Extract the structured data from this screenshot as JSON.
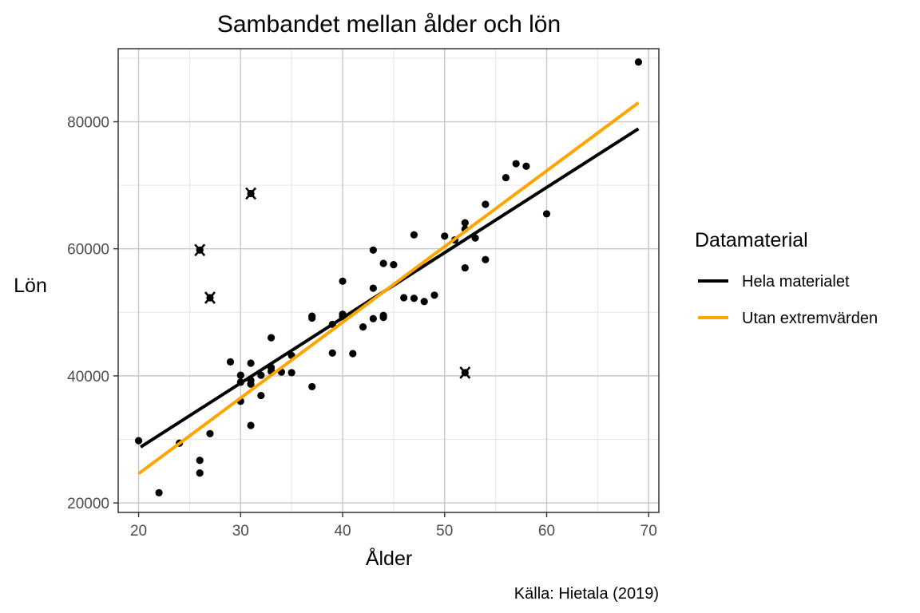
{
  "chart_data": {
    "type": "scatter",
    "title": "Sambandet mellan ålder och lön",
    "xlabel": "Ålder",
    "ylabel": "Lön",
    "caption": "Källa: Hietala (2019)",
    "xlim": [
      18,
      71
    ],
    "ylim": [
      18500,
      91500
    ],
    "x_ticks": [
      20,
      30,
      40,
      50,
      60,
      70
    ],
    "y_ticks": [
      20000,
      40000,
      60000,
      80000
    ],
    "grid": true,
    "legend_title": "Datamaterial",
    "legend_position": "right",
    "points": [
      {
        "x": 20,
        "y": 29800
      },
      {
        "x": 22,
        "y": 21600
      },
      {
        "x": 24,
        "y": 29400
      },
      {
        "x": 26,
        "y": 26700
      },
      {
        "x": 26,
        "y": 24700
      },
      {
        "x": 27,
        "y": 30900
      },
      {
        "x": 29,
        "y": 42200
      },
      {
        "x": 30,
        "y": 40100
      },
      {
        "x": 30,
        "y": 39000
      },
      {
        "x": 30,
        "y": 36000
      },
      {
        "x": 31,
        "y": 42000
      },
      {
        "x": 31,
        "y": 39300
      },
      {
        "x": 31,
        "y": 38700
      },
      {
        "x": 31,
        "y": 32200
      },
      {
        "x": 32,
        "y": 40100
      },
      {
        "x": 32,
        "y": 36900
      },
      {
        "x": 33,
        "y": 46000
      },
      {
        "x": 33,
        "y": 41300
      },
      {
        "x": 33,
        "y": 40700
      },
      {
        "x": 34,
        "y": 40600
      },
      {
        "x": 35,
        "y": 43200
      },
      {
        "x": 35,
        "y": 40500
      },
      {
        "x": 37,
        "y": 49400
      },
      {
        "x": 37,
        "y": 49100
      },
      {
        "x": 37,
        "y": 38300
      },
      {
        "x": 39,
        "y": 48100
      },
      {
        "x": 39,
        "y": 43600
      },
      {
        "x": 40,
        "y": 54900
      },
      {
        "x": 40,
        "y": 49700
      },
      {
        "x": 40,
        "y": 49300
      },
      {
        "x": 41,
        "y": 43500
      },
      {
        "x": 42,
        "y": 47700
      },
      {
        "x": 43,
        "y": 59800
      },
      {
        "x": 43,
        "y": 53800
      },
      {
        "x": 43,
        "y": 49000
      },
      {
        "x": 44,
        "y": 57700
      },
      {
        "x": 44,
        "y": 49500
      },
      {
        "x": 44,
        "y": 49200
      },
      {
        "x": 45,
        "y": 57500
      },
      {
        "x": 46,
        "y": 52300
      },
      {
        "x": 47,
        "y": 62200
      },
      {
        "x": 47,
        "y": 52200
      },
      {
        "x": 48,
        "y": 51700
      },
      {
        "x": 49,
        "y": 52700
      },
      {
        "x": 50,
        "y": 62000
      },
      {
        "x": 51,
        "y": 61400
      },
      {
        "x": 52,
        "y": 64100
      },
      {
        "x": 52,
        "y": 63100
      },
      {
        "x": 52,
        "y": 57000
      },
      {
        "x": 53,
        "y": 61700
      },
      {
        "x": 54,
        "y": 67000
      },
      {
        "x": 54,
        "y": 58300
      },
      {
        "x": 56,
        "y": 71200
      },
      {
        "x": 57,
        "y": 73400
      },
      {
        "x": 58,
        "y": 73000
      },
      {
        "x": 60,
        "y": 65500
      },
      {
        "x": 69,
        "y": 89400
      }
    ],
    "outliers": [
      {
        "x": 26,
        "y": 59800
      },
      {
        "x": 27,
        "y": 52300
      },
      {
        "x": 31,
        "y": 68700
      },
      {
        "x": 52,
        "y": 40500
      }
    ],
    "series": [
      {
        "name": "Hela materialet",
        "color": "#000000",
        "x": [
          20.2,
          69
        ],
        "y": [
          28800,
          78900
        ]
      },
      {
        "name": "Utan extremvärden",
        "color": "#ffa500",
        "x": [
          20,
          69
        ],
        "y": [
          24600,
          83000
        ]
      }
    ],
    "colors": {
      "point": "#000000",
      "panel_border": "#333333",
      "grid_major": "#c8c8c8",
      "grid_minor": "#e6e6e6"
    }
  }
}
